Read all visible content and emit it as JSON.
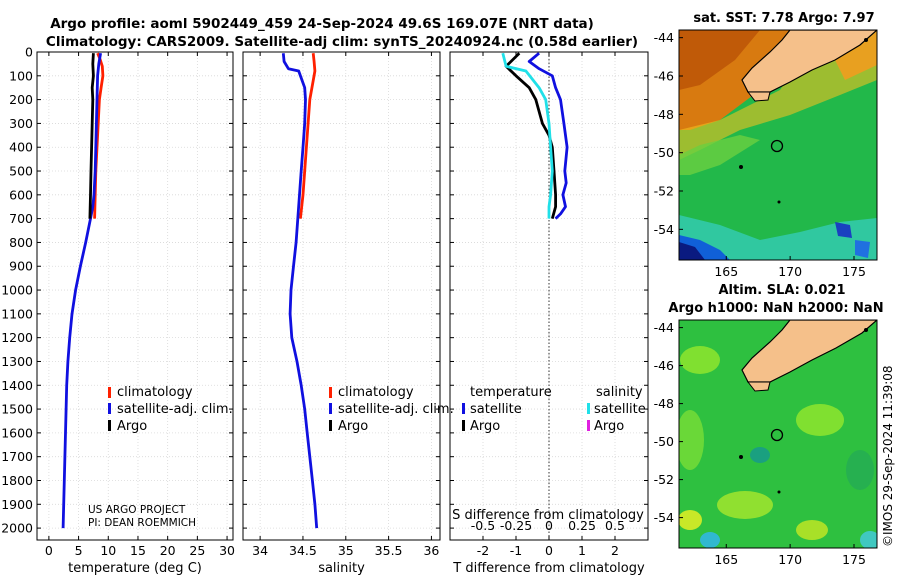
{
  "header": {
    "line1": "Argo profile: aoml 5902449_459 24-Sep-2024 49.6S 169.07E (NRT data)",
    "line2": "Climatology: CARS2009. Satellite-adj clim: synTS_20240924.nc (0.58d earlier)"
  },
  "colors": {
    "climatology": "#ff2000",
    "satellite": "#1010e0",
    "argo": "#000000",
    "satellite_diff_s": "#20e0e8",
    "argo_diff_s": "#e020e0"
  },
  "chart_data": [
    {
      "type": "line",
      "id": "temperature",
      "xlabel": "temperature (deg C)",
      "ylabel": "",
      "xlim": [
        -2,
        31
      ],
      "ylim": [
        0,
        2050
      ],
      "xticks": [
        0,
        5,
        10,
        15,
        20,
        25,
        30
      ],
      "yticks": [
        0,
        100,
        200,
        300,
        400,
        500,
        600,
        700,
        800,
        900,
        1000,
        1100,
        1200,
        1300,
        1400,
        1500,
        1600,
        1700,
        1800,
        1900,
        2000
      ],
      "grid": true,
      "legend": [
        "climatology",
        "satellite-adj. clim.",
        "Argo"
      ],
      "legend_position": "lower-right",
      "annotation": [
        "US ARGO PROJECT",
        "PI: DEAN ROEMMICH"
      ],
      "series": [
        {
          "name": "climatology",
          "color": "#ff2000",
          "x": [
            8.2,
            8.6,
            9.0,
            9.1,
            8.8,
            8.5,
            8.3,
            8.1,
            7.9,
            7.7
          ],
          "y": [
            5,
            30,
            60,
            100,
            150,
            200,
            300,
            400,
            500,
            700
          ]
        },
        {
          "name": "satellite-adj. clim.",
          "color": "#1010e0",
          "x": [
            8.7,
            8.4,
            8.2,
            8.1,
            8.0,
            7.9,
            7.8,
            7.6,
            7.4,
            7.0,
            6.2,
            5.3,
            4.5,
            3.9,
            3.5,
            3.2,
            3.0,
            2.9,
            2.8,
            2.7,
            2.6,
            2.5,
            2.4
          ],
          "y": [
            5,
            50,
            100,
            200,
            300,
            400,
            500,
            600,
            650,
            700,
            800,
            900,
            1000,
            1100,
            1200,
            1300,
            1400,
            1500,
            1600,
            1700,
            1800,
            1900,
            2000
          ]
        },
        {
          "name": "Argo",
          "color": "#000000",
          "x": [
            7.5,
            7.4,
            7.5,
            7.3,
            7.4,
            7.3,
            7.2,
            7.1,
            7.0,
            6.9
          ],
          "y": [
            5,
            50,
            100,
            150,
            200,
            300,
            400,
            500,
            600,
            700
          ]
        }
      ]
    },
    {
      "type": "line",
      "id": "salinity",
      "xlabel": "salinity",
      "xlim": [
        33.8,
        36.1
      ],
      "ylim": [
        0,
        2050
      ],
      "xticks": [
        34,
        34.5,
        35,
        35.5,
        36
      ],
      "grid": true,
      "legend": [
        "climatology",
        "satellite-adj. clim.",
        "Argo"
      ],
      "legend_position": "lower-right",
      "series": [
        {
          "name": "climatology",
          "color": "#ff2000",
          "x": [
            34.62,
            34.63,
            34.64,
            34.62,
            34.58,
            34.56,
            34.54,
            34.52,
            34.5,
            34.47
          ],
          "y": [
            5,
            40,
            80,
            120,
            200,
            300,
            400,
            500,
            600,
            700
          ]
        },
        {
          "name": "satellite-adj. clim.",
          "color": "#1010e0",
          "x": [
            34.27,
            34.28,
            34.33,
            34.45,
            34.52,
            34.53,
            34.52,
            34.5,
            34.48,
            34.46,
            34.44,
            34.42,
            34.39,
            34.36,
            34.35,
            34.37,
            34.43,
            34.48,
            34.52,
            34.55,
            34.58,
            34.61,
            34.64,
            34.66
          ],
          "y": [
            5,
            40,
            70,
            80,
            150,
            200,
            300,
            400,
            500,
            600,
            700,
            800,
            900,
            1000,
            1100,
            1200,
            1300,
            1400,
            1500,
            1600,
            1700,
            1800,
            1900,
            2000
          ]
        },
        {
          "name": "Argo",
          "color": "#000000",
          "x": [],
          "y": []
        }
      ]
    },
    {
      "type": "line",
      "id": "difference",
      "xlabel": "T difference from climatology",
      "xlabel2": "S difference from climatology",
      "xlim": [
        -3,
        3
      ],
      "ylim": [
        0,
        2050
      ],
      "xticks": [
        -2,
        -1,
        0,
        1,
        2
      ],
      "xticks2": [
        -0.5,
        -0.25,
        0,
        0.25,
        0.5
      ],
      "grid": true,
      "legend_t_title": "temperature",
      "legend_s_title": "salinity",
      "legend_t": [
        "satellite",
        "Argo"
      ],
      "legend_s": [
        "satellite",
        "Argo"
      ],
      "series": [
        {
          "name": "T satellite",
          "color": "#1010e0",
          "x": [
            -0.3,
            -0.6,
            -0.3,
            0.1,
            0.2,
            0.35,
            0.45,
            0.55,
            0.48,
            0.52,
            0.42,
            0.5,
            0.35,
            0.2
          ],
          "y": [
            5,
            40,
            70,
            100,
            150,
            200,
            300,
            400,
            500,
            550,
            600,
            650,
            680,
            700
          ]
        },
        {
          "name": "T Argo",
          "color": "#000000",
          "x": [
            -0.9,
            -1.3,
            -1.0,
            -0.6,
            -0.4,
            -0.2,
            0.0,
            0.1,
            0.15,
            0.2,
            0.2,
            0.1
          ],
          "y": [
            5,
            60,
            100,
            150,
            200,
            300,
            350,
            400,
            500,
            600,
            650,
            700
          ]
        },
        {
          "name": "S satellite",
          "color": "#20e0e8",
          "x": [
            -1.4,
            -1.3,
            -0.7,
            -0.3,
            -0.1,
            0.0,
            0.05,
            0.1,
            0.05,
            0.0,
            0.0
          ],
          "y": [
            5,
            60,
            80,
            150,
            200,
            300,
            400,
            500,
            600,
            650,
            700
          ]
        }
      ]
    }
  ],
  "maps": [
    {
      "title": "sat. SST: 7.78 Argo: 7.97",
      "yticks": [
        "-44",
        "-46",
        "-48",
        "-50",
        "-52",
        "-54"
      ],
      "xticks": [
        "165",
        "170",
        "175"
      ]
    },
    {
      "title1": "Altim. SLA: 0.021",
      "title2": "Argo h1000: NaN h2000: NaN",
      "yticks": [
        "-44",
        "-46",
        "-48",
        "-50",
        "-52",
        "-54"
      ],
      "xticks": [
        "165",
        "170",
        "175"
      ]
    }
  ],
  "watermark": "©IMOS 29-Sep-2024 11:39:08"
}
